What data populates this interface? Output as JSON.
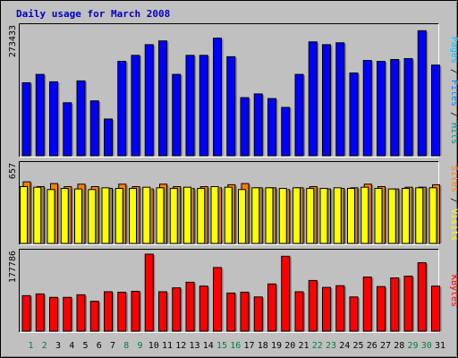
{
  "chart_data": {
    "type": "bar",
    "title": "Daily usage for March 2008",
    "categories": [
      "1",
      "2",
      "3",
      "4",
      "5",
      "6",
      "7",
      "8",
      "9",
      "10",
      "11",
      "12",
      "13",
      "14",
      "15",
      "16",
      "17",
      "18",
      "19",
      "20",
      "21",
      "22",
      "23",
      "24",
      "25",
      "26",
      "27",
      "28",
      "29",
      "30",
      "31"
    ],
    "weekend_days": [
      "1",
      "2",
      "8",
      "9",
      "15",
      "16",
      "22",
      "23",
      "29",
      "30"
    ],
    "panels": [
      {
        "max_label": "273433",
        "ylim": [
          0,
          273433
        ],
        "axis_labels": [
          "Pages",
          "Files",
          "Hits"
        ],
        "axis_label_colors": [
          "#00c0ff",
          "#0080ff",
          "#009090"
        ],
        "series": [
          {
            "name": "Hits",
            "color": "#0000ff",
            "values": [
              157000,
              175000,
              159000,
              114000,
              161000,
              118000,
              79000,
              203000,
              216000,
              239000,
              247000,
              175000,
              216000,
              216000,
              253000,
              213000,
              125000,
              133000,
              123000,
              104000,
              175000,
              245000,
              239000,
              243000,
              178000,
              205000,
              203000,
              207000,
              209000,
              269000,
              195000
            ]
          }
        ]
      },
      {
        "max_label": "657",
        "ylim": [
          0,
          657
        ],
        "axis_labels": [
          "Sites",
          "Visits"
        ],
        "axis_label_colors": [
          "#ff8000",
          "#ffff00"
        ],
        "series": [
          {
            "name": "Visits",
            "color": "#ff8000",
            "values": [
              526,
              485,
              511,
              485,
              506,
              485,
              470,
              506,
              485,
              465,
              506,
              485,
              470,
              485,
              475,
              501,
              511,
              475,
              475,
              460,
              475,
              485,
              465,
              470,
              475,
              506,
              485,
              465,
              480,
              480,
              501
            ]
          },
          {
            "name": "Sites",
            "color": "#ffff00",
            "values": [
              485,
              480,
              460,
              470,
              465,
              460,
              475,
              470,
              470,
              480,
              475,
              470,
              480,
              470,
              485,
              480,
              460,
              475,
              475,
              470,
              475,
              470,
              470,
              475,
              470,
              480,
              470,
              465,
              470,
              475,
              475
            ]
          }
        ]
      },
      {
        "max_label": "177786",
        "ylim": [
          0,
          177786
        ],
        "axis_labels": [
          "KBytes"
        ],
        "axis_label_colors": [
          "#ff0000"
        ],
        "series": [
          {
            "name": "KBytes",
            "color": "#ff0000",
            "values": [
              82000,
              86000,
              78000,
              78000,
              84000,
              69000,
              91000,
              90000,
              92000,
              177786,
              91000,
              100000,
              113000,
              104000,
              147000,
              88000,
              90000,
              79000,
              109000,
              173000,
              91000,
              117000,
              101000,
              105000,
              79000,
              125000,
              103000,
              123000,
              127000,
              158000,
              104000
            ]
          }
        ]
      }
    ]
  }
}
